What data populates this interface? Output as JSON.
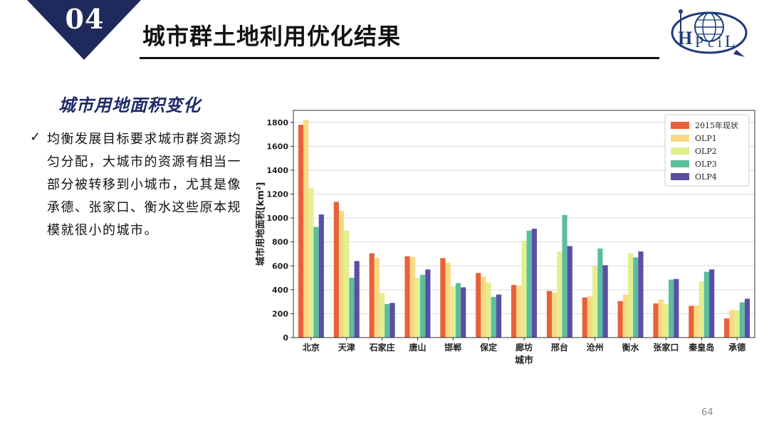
{
  "header": {
    "section_number": "04",
    "title": "城市群土地利用优化结果",
    "badge_color": "#1f2a5c"
  },
  "logo": {
    "icon": "hpcil-logo-icon",
    "text": "HPciL",
    "color": "#1f3a7a"
  },
  "content": {
    "section_title": "城市用地面积变化",
    "bullet_icon": "check-icon",
    "bullet_text": "均衡发展目标要求城市群资源均匀分配，大城市的资源有相当一部分被转移到小城市，尤其是像承德、张家口、衡水这些原本规模就很小的城市。"
  },
  "chart_data": {
    "type": "bar",
    "xlabel": "城市",
    "ylabel": "城市用地面积[km²]",
    "ylim": [
      0,
      1900
    ],
    "yticks": [
      0,
      200,
      400,
      600,
      800,
      1000,
      1200,
      1400,
      1600,
      1800
    ],
    "grid": true,
    "legend_position": "top-right",
    "categories": [
      "北京",
      "天津",
      "石家庄",
      "唐山",
      "邯郸",
      "保定",
      "廊坊",
      "邢台",
      "沧州",
      "衡水",
      "张家口",
      "秦皇岛",
      "承德"
    ],
    "series": [
      {
        "name": "2015年现状",
        "color": "#e8613a",
        "values": [
          1780,
          1135,
          705,
          680,
          665,
          540,
          440,
          390,
          335,
          305,
          285,
          265,
          160
        ]
      },
      {
        "name": "OLP1",
        "color": "#fbd982",
        "values": [
          1820,
          1060,
          665,
          675,
          625,
          510,
          435,
          375,
          345,
          360,
          320,
          270,
          230
        ]
      },
      {
        "name": "OLP2",
        "color": "#e2ef8f",
        "values": [
          1250,
          895,
          375,
          500,
          430,
          460,
          810,
          720,
          600,
          705,
          280,
          470,
          230
        ]
      },
      {
        "name": "OLP3",
        "color": "#5dbd9f",
        "values": [
          925,
          500,
          280,
          525,
          455,
          340,
          895,
          1025,
          745,
          670,
          485,
          550,
          295
        ]
      },
      {
        "name": "OLP4",
        "color": "#5a4fa3",
        "values": [
          1030,
          640,
          290,
          570,
          420,
          360,
          910,
          765,
          605,
          720,
          490,
          570,
          325
        ]
      }
    ]
  },
  "footer": {
    "page_number": "64"
  }
}
